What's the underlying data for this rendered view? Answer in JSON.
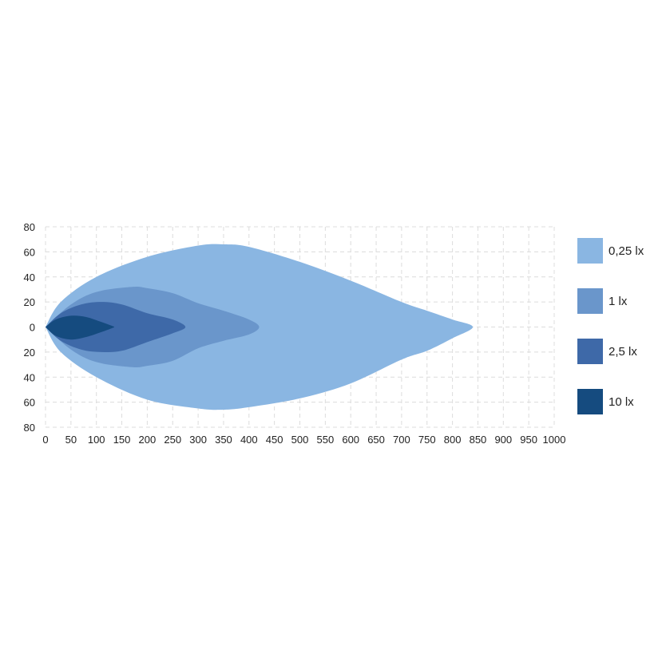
{
  "chart_data": {
    "type": "area",
    "title": "",
    "xlabel": "",
    "ylabel": "",
    "xlim": [
      0,
      1000
    ],
    "ylim": [
      -80,
      80
    ],
    "x_ticks": [
      0,
      50,
      100,
      150,
      200,
      250,
      300,
      350,
      400,
      450,
      500,
      550,
      600,
      650,
      700,
      750,
      800,
      850,
      900,
      950,
      1000
    ],
    "x_tick_labels": [
      "0",
      "50",
      "100",
      "150",
      "200",
      "250",
      "300",
      "350",
      "400",
      "450",
      "500",
      "550",
      "600",
      "650",
      "700",
      "750",
      "800",
      "850",
      "900",
      "950",
      "1000"
    ],
    "y_ticks": [
      80,
      60,
      40,
      20,
      0,
      -20,
      -40,
      -60,
      -80
    ],
    "y_tick_labels": [
      "80",
      "60",
      "40",
      "20",
      "0",
      "20",
      "40",
      "60",
      "80"
    ],
    "grid": true,
    "legend_position": "right",
    "series": [
      {
        "name": "0,25 lx",
        "color": "#8ab6e2",
        "upper": [
          [
            0,
            0
          ],
          [
            30,
            20
          ],
          [
            100,
            40
          ],
          [
            200,
            56
          ],
          [
            300,
            65
          ],
          [
            350,
            66
          ],
          [
            400,
            64
          ],
          [
            500,
            52
          ],
          [
            600,
            37
          ],
          [
            700,
            20
          ],
          [
            750,
            13
          ],
          [
            800,
            6
          ],
          [
            840,
            0
          ]
        ],
        "lower": [
          [
            840,
            0
          ],
          [
            800,
            -9
          ],
          [
            750,
            -19
          ],
          [
            700,
            -26
          ],
          [
            600,
            -45
          ],
          [
            500,
            -57
          ],
          [
            400,
            -64
          ],
          [
            350,
            -66
          ],
          [
            300,
            -65
          ],
          [
            200,
            -58
          ],
          [
            100,
            -40
          ],
          [
            30,
            -20
          ],
          [
            0,
            0
          ]
        ]
      },
      {
        "name": "1 lx",
        "color": "#6a96cb",
        "upper": [
          [
            0,
            0
          ],
          [
            50,
            18
          ],
          [
            100,
            28
          ],
          [
            170,
            32
          ],
          [
            200,
            31
          ],
          [
            250,
            27
          ],
          [
            300,
            19
          ],
          [
            350,
            13
          ],
          [
            400,
            6
          ],
          [
            420,
            0
          ]
        ],
        "lower": [
          [
            420,
            0
          ],
          [
            400,
            -6
          ],
          [
            350,
            -11
          ],
          [
            300,
            -17
          ],
          [
            250,
            -27
          ],
          [
            200,
            -31
          ],
          [
            170,
            -32
          ],
          [
            100,
            -28
          ],
          [
            50,
            -18
          ],
          [
            0,
            0
          ]
        ]
      },
      {
        "name": "2,5 lx",
        "color": "#3e69a8",
        "upper": [
          [
            0,
            0
          ],
          [
            30,
            11
          ],
          [
            70,
            18
          ],
          [
            110,
            20
          ],
          [
            150,
            18
          ],
          [
            200,
            11
          ],
          [
            250,
            6
          ],
          [
            275,
            0
          ]
        ],
        "lower": [
          [
            275,
            0
          ],
          [
            250,
            -5
          ],
          [
            200,
            -12
          ],
          [
            150,
            -19
          ],
          [
            110,
            -20
          ],
          [
            70,
            -18
          ],
          [
            30,
            -11
          ],
          [
            0,
            0
          ]
        ]
      },
      {
        "name": "10 lx",
        "color": "#154b7f",
        "upper": [
          [
            0,
            0
          ],
          [
            20,
            6
          ],
          [
            50,
            9
          ],
          [
            80,
            8
          ],
          [
            110,
            4
          ],
          [
            130,
            1
          ],
          [
            135,
            0
          ]
        ],
        "lower": [
          [
            135,
            0
          ],
          [
            130,
            -1
          ],
          [
            110,
            -4
          ],
          [
            80,
            -8
          ],
          [
            50,
            -10
          ],
          [
            20,
            -7
          ],
          [
            0,
            0
          ]
        ]
      }
    ]
  }
}
